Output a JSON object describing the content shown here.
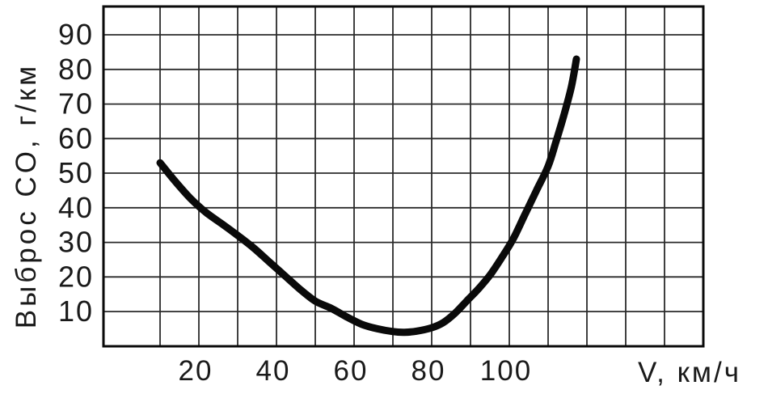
{
  "figure": {
    "background": "#ffffff",
    "ink_color": "#0a0a0a",
    "grid_color": "#2b2b2b"
  },
  "chart_data": {
    "type": "line",
    "title": "",
    "xlabel": "V, км/ч",
    "ylabel": "Выброс CO, г/км",
    "grid": "on",
    "legend": "none",
    "xlim": [
      -5,
      150
    ],
    "ylim": [
      0,
      98
    ],
    "x_tick_labels": [
      20,
      40,
      60,
      80,
      100
    ],
    "y_tick_labels": [
      10,
      20,
      30,
      40,
      50,
      60,
      70,
      80,
      90
    ],
    "x_gridline_values": [
      10,
      20,
      30,
      40,
      50,
      60,
      70,
      80,
      90,
      100,
      110,
      120,
      130,
      140
    ],
    "y_gridline_values": [
      10,
      20,
      30,
      40,
      50,
      60,
      70,
      80,
      90
    ],
    "series": [
      {
        "name": "Выброс CO",
        "points": [
          [
            10,
            53
          ],
          [
            14,
            47.5
          ],
          [
            18,
            42.5
          ],
          [
            22,
            38.5
          ],
          [
            26,
            35.3
          ],
          [
            30,
            32
          ],
          [
            34,
            28.5
          ],
          [
            38,
            24.5
          ],
          [
            42,
            20.5
          ],
          [
            46,
            16.5
          ],
          [
            50,
            13
          ],
          [
            54,
            11
          ],
          [
            58,
            8.5
          ],
          [
            62,
            6.3
          ],
          [
            66,
            5
          ],
          [
            70,
            4.2
          ],
          [
            73,
            4
          ],
          [
            76,
            4.3
          ],
          [
            80,
            5.3
          ],
          [
            83,
            6.8
          ],
          [
            86,
            9.5
          ],
          [
            89,
            13
          ],
          [
            92,
            16.5
          ],
          [
            95,
            20.5
          ],
          [
            98,
            25.5
          ],
          [
            101,
            31
          ],
          [
            104,
            38
          ],
          [
            107,
            45
          ],
          [
            110,
            52
          ],
          [
            112,
            59
          ],
          [
            114,
            66.5
          ],
          [
            116,
            75
          ],
          [
            117.3,
            83
          ]
        ]
      }
    ]
  }
}
